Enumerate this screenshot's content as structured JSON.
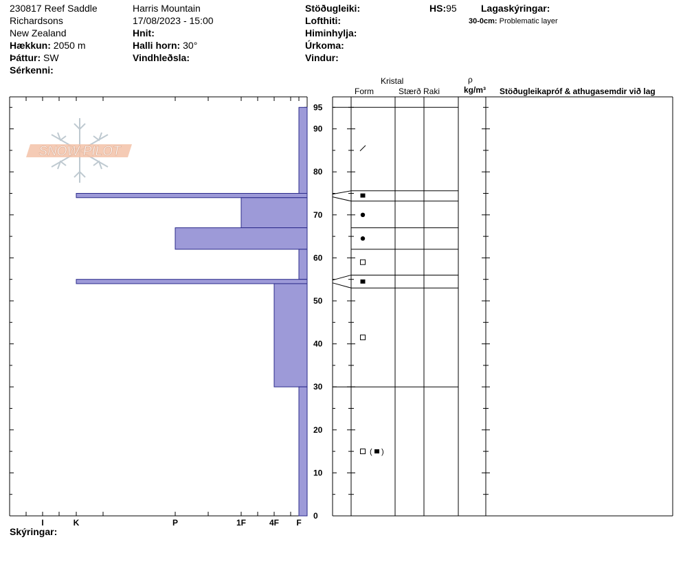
{
  "header": {
    "col1": {
      "line1": "230817 Reef Saddle",
      "line2": "Richardsons",
      "line3": "New Zealand",
      "elevation_label": "Hækkun:",
      "elevation_value": "2050 m",
      "aspect_label": "Þáttur:",
      "aspect_value": "SW",
      "features_label": "Sérkenni:"
    },
    "col2": {
      "line1": "Harris Mountain",
      "line2": "17/08/2023 - 15:00",
      "coords_label": "Hnit:",
      "slope_label": "Halli horn:",
      "slope_value": "30°",
      "wind_label": "Vindhleðsla:"
    },
    "col3": {
      "stability_label": "Stöðugleiki:",
      "airtemp_label": "Lofthiti:",
      "sky_label": "Himinhylja:",
      "precip_label": "Úrkoma:",
      "wind_label": "Vindur:"
    },
    "hs_label": "HS:",
    "hs_value": "95",
    "layer_notes_label": "Lagaskýringar:",
    "layer_note_range": "30-0cm:",
    "layer_note_text": "Problematic layer",
    "comments_label": "Skýringar:"
  },
  "columns": {
    "crystal": "Kristal",
    "form": "Form",
    "size": "Stærð",
    "moisture": "Raki",
    "rho": "ρ",
    "density_unit": "kg/m³",
    "stability_tests": "Stöðugleikapróf & athugasemdir við lag"
  },
  "logo_text": "SNOW PILOT",
  "colors": {
    "hardness_fill": "#9d9ad8",
    "hardness_stroke": "#2a2a8a"
  },
  "chart_data": {
    "type": "bar",
    "ylim": [
      0,
      95
    ],
    "y_ticks": [
      0,
      10,
      20,
      30,
      40,
      50,
      60,
      70,
      80,
      90,
      95
    ],
    "hardness_scale": [
      "F",
      "4F",
      "1F",
      "P",
      "K",
      "I"
    ],
    "hardness_index": [
      1,
      2,
      3,
      4,
      5,
      6
    ],
    "layers": [
      {
        "top": 95,
        "bottom": 75,
        "hardness": 1
      },
      {
        "top": 75,
        "bottom": 74,
        "hardness": 5
      },
      {
        "top": 74,
        "bottom": 67,
        "hardness": 3
      },
      {
        "top": 67,
        "bottom": 62,
        "hardness": 4
      },
      {
        "top": 62,
        "bottom": 55,
        "hardness": 1
      },
      {
        "top": 55,
        "bottom": 54,
        "hardness": 5
      },
      {
        "top": 54,
        "bottom": 30,
        "hardness": 2
      },
      {
        "top": 30,
        "bottom": 0,
        "hardness": 1
      }
    ],
    "grain_symbols": [
      {
        "height": 85.5,
        "symbol": "slash"
      },
      {
        "height": 74.5,
        "symbol": "filled-square"
      },
      {
        "height": 70,
        "symbol": "dot"
      },
      {
        "height": 64.5,
        "symbol": "dot"
      },
      {
        "height": 59,
        "symbol": "open-square"
      },
      {
        "height": 54.5,
        "symbol": "filled-square"
      },
      {
        "height": 41.5,
        "symbol": "open-square"
      },
      {
        "height": 15,
        "symbol": "open-square-paren-filled-square"
      }
    ]
  }
}
